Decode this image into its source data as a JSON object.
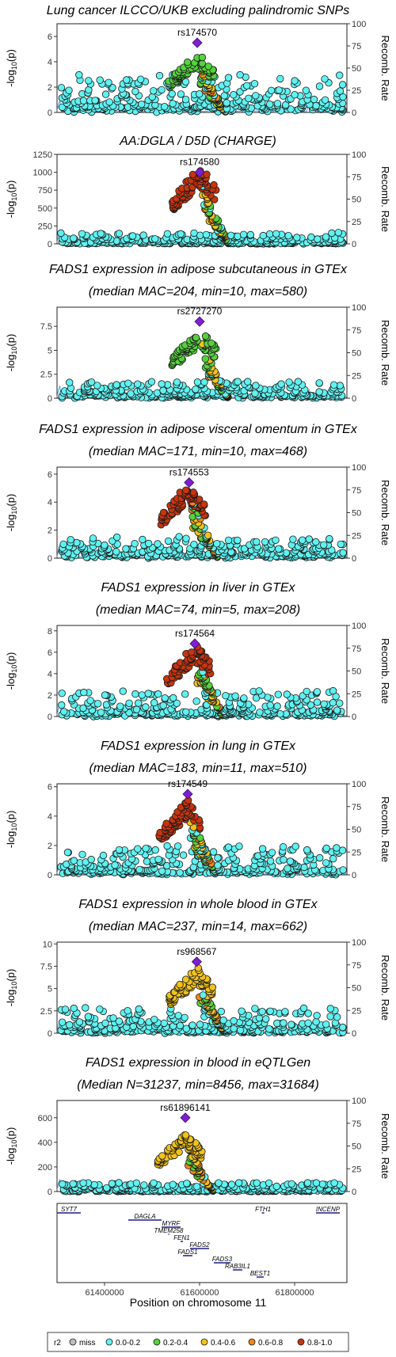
{
  "chart_data": {
    "type": "scatter",
    "x_range": [
      61300000,
      61910000
    ],
    "right_axis": {
      "label": "Recomb. Rate",
      "ticks": [
        0,
        25,
        50,
        75,
        100
      ]
    },
    "legend": {
      "title": "r2",
      "entries": [
        {
          "label": "miss",
          "color": "#bebebe"
        },
        {
          "label": "0.0-0.2",
          "color": "#60f1f1"
        },
        {
          "label": "0.2-0.4",
          "color": "#56d23e"
        },
        {
          "label": "0.4-0.6",
          "color": "#f0c31b"
        },
        {
          "label": "0.6-0.8",
          "color": "#f0861b"
        },
        {
          "label": "0.8-1.0",
          "color": "#c7350f"
        }
      ]
    },
    "lead_color": "#7e1fd1",
    "recomb_color": "#4aa3df",
    "panels": [
      {
        "title": [
          "Lung cancer ILCCO/UKB excluding palindromic SNPs"
        ],
        "ymax": 7,
        "yticks": [
          0,
          2,
          4,
          6
        ],
        "lead": {
          "snp": "rs174570",
          "x": 61595000,
          "y": 5.5
        },
        "peak": {
          "y": 4.3,
          "r2_class": 2
        },
        "noise": 2.6,
        "noise_base": 0.5
      },
      {
        "title": [
          "AA:DGLA / D5D (CHARGE)"
        ],
        "ymax": 1250,
        "yticks": [
          0,
          250,
          500,
          750,
          1000,
          1250
        ],
        "lead": {
          "snp": "rs174580",
          "x": 61600000,
          "y": 1000
        },
        "peak": {
          "y": 1000,
          "r2_class": 5
        },
        "noise": 150,
        "noise_base": 10
      },
      {
        "title": [
          "FADS1 expression in adipose subcutaneous in GTEx",
          "(median MAC=204, min=10, max=580)"
        ],
        "ymax": 9.5,
        "yticks": [
          0,
          2.5,
          5,
          7.5
        ],
        "lead": {
          "snp": "rs2727270",
          "x": 61600000,
          "y": 8.0
        },
        "peak": {
          "y": 6.8,
          "r2_class": 2
        },
        "noise": 1.6,
        "noise_base": 0.3
      },
      {
        "title": [
          "FADS1 expression in adipose visceral omentum in GTEx",
          "(median MAC=171, min=10, max=468)"
        ],
        "ymax": 6.5,
        "yticks": [
          0,
          2,
          4,
          6
        ],
        "lead": {
          "snp": "rs174553",
          "x": 61578000,
          "y": 5.4
        },
        "peak": {
          "y": 5.0,
          "r2_class": 5
        },
        "noise": 1.3,
        "noise_base": 0.3
      },
      {
        "title": [
          "FADS1 expression in liver in GTEx",
          "(median MAC=74, min=5, max=208)"
        ],
        "ymax": 8.5,
        "yticks": [
          0,
          2,
          4,
          6,
          8
        ],
        "lead": {
          "snp": "rs174564",
          "x": 61590000,
          "y": 6.8
        },
        "peak": {
          "y": 6.2,
          "r2_class": 5
        },
        "noise": 2.2,
        "noise_base": 0.3
      },
      {
        "title": [
          "FADS1 expression in lung in GTEx",
          "(median MAC=183, min=11, max=510)"
        ],
        "ymax": 6.2,
        "yticks": [
          0,
          2,
          4,
          6
        ],
        "lead": {
          "snp": "rs174549",
          "x": 61575000,
          "y": 5.5
        },
        "peak": {
          "y": 4.8,
          "r2_class": 5
        },
        "noise": 1.8,
        "noise_base": 0.3
      },
      {
        "title": [
          "FADS1 expression in whole blood in GTEx",
          "(median MAC=237, min=14, max=662)"
        ],
        "ymax": 10.2,
        "yticks": [
          0,
          2.5,
          5,
          7.5,
          10
        ],
        "lead": {
          "snp": "rs968567",
          "x": 61594000,
          "y": 8.0
        },
        "peak": {
          "y": 6.8,
          "r2_class": 3
        },
        "noise": 2.6,
        "noise_base": 0.3
      },
      {
        "title": [
          "FADS1 expression in blood in eQTLGen",
          "(Median N=31237, min=8456, max=31684)"
        ],
        "ymax": 740,
        "yticks": [
          0,
          200,
          400,
          600
        ],
        "lead": {
          "snp": "rs61896141",
          "x": 61570000,
          "y": 600
        },
        "peak": {
          "y": 430,
          "r2_class": 3
        },
        "noise": 70,
        "noise_base": 5
      }
    ],
    "genes": [
      {
        "name": "SYT7",
        "start": 61300000,
        "end": 61350000,
        "row": 0
      },
      {
        "name": "FTH1",
        "start": 61731000,
        "end": 61736000,
        "row": 0
      },
      {
        "name": "INCENP",
        "start": 61845000,
        "end": 61895000,
        "row": 0
      },
      {
        "name": "DAGLA",
        "start": 61450000,
        "end": 61520000,
        "row": 1
      },
      {
        "name": "MYRF",
        "start": 61520000,
        "end": 61560000,
        "row": 2
      },
      {
        "name": "TMEM258",
        "start": 61534000,
        "end": 61536000,
        "row": 3
      },
      {
        "name": "FEN1",
        "start": 61560000,
        "end": 61565000,
        "row": 4
      },
      {
        "name": "FADS2",
        "start": 61580000,
        "end": 61620000,
        "row": 5
      },
      {
        "name": "FADS1",
        "start": 61565000,
        "end": 61585000,
        "row": 6
      },
      {
        "name": "FADS3",
        "start": 61630000,
        "end": 61665000,
        "row": 7
      },
      {
        "name": "RAB3IL1",
        "start": 61670000,
        "end": 61690000,
        "row": 8
      },
      {
        "name": "BEST1",
        "start": 61720000,
        "end": 61735000,
        "row": 9
      }
    ],
    "x_ticks": [
      61400000,
      61600000,
      61800000
    ],
    "xlabel": "Position on chromosome 11",
    "ylabel": "-log10(p)"
  }
}
